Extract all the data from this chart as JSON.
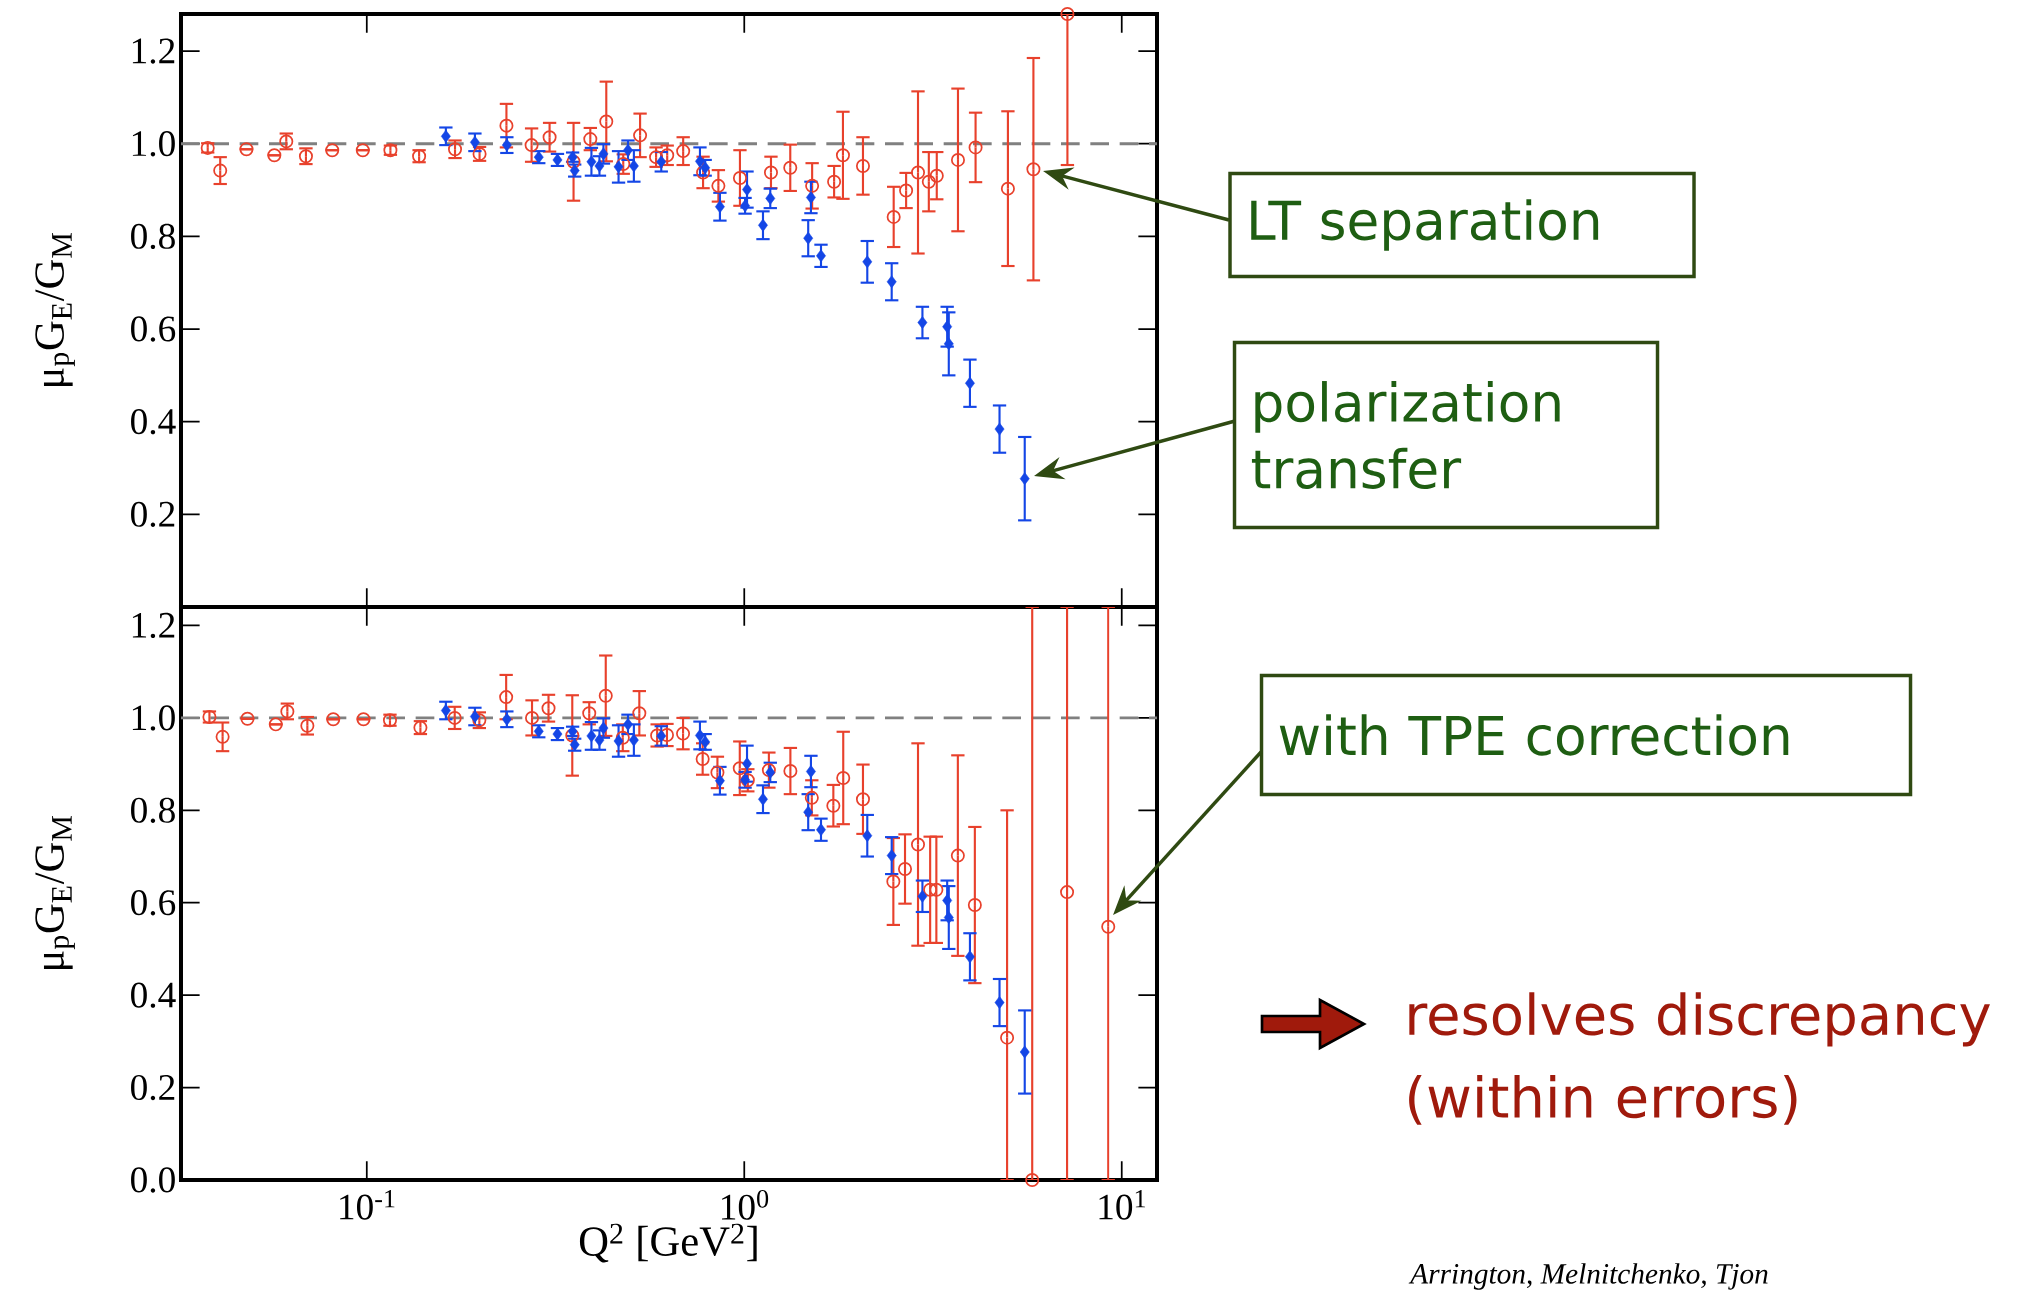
{
  "chart_data": [
    {
      "type": "scatter",
      "log": "x",
      "xlim": [
        0.0322,
        12.4
      ],
      "ylim": [
        0,
        1.28
      ],
      "xticks": [
        {
          "value": 0.1,
          "label": null
        },
        {
          "value": 1,
          "label": null
        },
        {
          "value": 10,
          "label": null
        }
      ],
      "yticks": [
        {
          "value": 0.2,
          "label": "0.2"
        },
        {
          "value": 0.4,
          "label": "0.4"
        },
        {
          "value": 0.6,
          "label": "0.6"
        },
        {
          "value": 0.8,
          "label": "0.8"
        },
        {
          "value": 1,
          "label": "1.0"
        },
        {
          "value": 1.2,
          "label": "1.2"
        }
      ],
      "tick_labels": "y",
      "ylabel": "μ$_{p}$G$_{E}$/G$_{M}$",
      "ref_lines": [
        {
          "axis": "y",
          "value": 1,
          "color": "#808080",
          "line_style": "dashed"
        }
      ],
      "annotations": [
        "LT separation",
        "polarization transfer"
      ],
      "series": [
        {
          "color": "#e8412c",
          "marker": "circle",
          "x": [
            0.0379,
            0.0409,
            0.048,
            0.0569,
            0.0612,
            0.069,
            0.081,
            0.0976,
            0.1155,
            0.1376,
            0.1713,
            0.199,
            0.2344,
            0.2733,
            0.305,
            0.353,
            0.391,
            0.431,
            0.478,
            0.5297,
            0.584,
            0.625,
            0.689,
            0.778,
            0.854,
            0.974,
            1.177,
            1.324,
            1.513,
            1.73,
            1.826,
            2.063,
            2.488,
            2.684,
            2.886,
            3.083,
            3.236,
            3.683,
            4.1,
            4.994,
            5.835,
            7.18
          ],
          "values": [
            0.991,
            0.942,
            0.988,
            0.975,
            1.005,
            0.973,
            0.986,
            0.986,
            0.986,
            0.973,
            0.988,
            0.978,
            1.039,
            0.997,
            1.014,
            0.961,
            1.01,
            1.048,
            0.956,
            1.018,
            0.971,
            0.975,
            0.984,
            0.938,
            0.909,
            0.926,
            0.938,
            0.948,
            0.909,
            0.918,
            0.975,
            0.952,
            0.842,
            0.899,
            0.938,
            0.918,
            0.931,
            0.965,
            0.992,
            0.903,
            0.945,
            1.28
          ],
          "errors": [
            0.01,
            0.029,
            null,
            null,
            0.017,
            0.017,
            null,
            null,
            0.01,
            0.013,
            0.019,
            0.015,
            0.047,
            0.036,
            0.031,
            0.084,
            0.024,
            0.086,
            0.021,
            0.047,
            0.021,
            0.021,
            0.03,
            0.034,
            0.034,
            0.06,
            0.034,
            0.05,
            0.049,
            0.034,
            0.094,
            0.062,
            0.065,
            0.038,
            0.175,
            0.064,
            0.051,
            0.154,
            0.075,
            0.167,
            0.24,
            [
              0.954,
              1.28
            ]
          ]
        },
        {
          "color": "#1446e6",
          "marker": "diamond",
          "x": [
            0.162,
            0.1934,
            0.235,
            0.2855,
            0.32,
            0.351,
            0.3555,
            0.3937,
            0.4134,
            0.4236,
            0.4645,
            0.492,
            0.51,
            0.6027,
            0.7633,
            0.788,
            0.862,
            1.005,
            1.017,
            1.121,
            1.172,
            1.502,
            1.477,
            1.597,
            2.118,
            2.458,
            2.965,
            3.448,
            3.482,
            3.962,
            4.745,
            5.534
          ],
          "values": [
            1.016,
            1.003,
            0.997,
            0.971,
            0.965,
            0.971,
            0.942,
            0.961,
            0.952,
            0.978,
            0.95,
            0.986,
            0.952,
            0.961,
            0.962,
            0.948,
            0.864,
            0.866,
            0.901,
            0.824,
            0.882,
            0.884,
            0.796,
            0.758,
            0.745,
            0.702,
            0.614,
            0.605,
            0.568,
            0.483,
            0.384,
            0.277
          ],
          "errors": [
            0.019,
            0.019,
            0.017,
            0.013,
            0.013,
            0.01,
            0.013,
            0.03,
            0.021,
            0.021,
            0.034,
            0.021,
            0.034,
            0.021,
            0.03,
            0.017,
            0.03,
            0.017,
            0.039,
            0.03,
            0.021,
            0.034,
            0.039,
            0.024,
            0.045,
            0.04,
            0.034,
            0.043,
            0.068,
            0.051,
            0.051,
            0.09
          ]
        }
      ]
    },
    {
      "type": "scatter",
      "log": "x",
      "xlim": [
        0.0322,
        12.4
      ],
      "ylim": [
        0,
        1.24
      ],
      "xticks": [
        {
          "value": 0.1,
          "label": "10$^{-1}$"
        },
        {
          "value": 1,
          "label": "10$^{0}$"
        },
        {
          "value": 10,
          "label": "10$^{1}$"
        }
      ],
      "yticks": [
        {
          "value": 0,
          "label": "0.0"
        },
        {
          "value": 0.2,
          "label": "0.2"
        },
        {
          "value": 0.4,
          "label": "0.4"
        },
        {
          "value": 0.6,
          "label": "0.6"
        },
        {
          "value": 0.8,
          "label": "0.8"
        },
        {
          "value": 1,
          "label": "1.0"
        },
        {
          "value": 1.2,
          "label": "1.2"
        }
      ],
      "xlabel": "Q$^{2}$ [GeV$^{2}$]",
      "ylabel": "μ$_{p}$G$_{E}$/G$_{M}$",
      "ref_lines": [
        {
          "axis": "y",
          "value": 1,
          "color": "#808080",
          "line_style": "dashed"
        }
      ],
      "annotations": [
        "with TPE correction",
        "resolves discrepancy (within errors)",
        "Arrington, Melnitchenko, Tjon"
      ],
      "series": [
        {
          "color": "#e8412c",
          "marker": "circle",
          "x": [
            0.0383,
            0.0415,
            0.0483,
            0.0574,
            0.0616,
            0.0696,
            0.0815,
            0.098,
            0.1152,
            0.1387,
            0.171,
            0.1987,
            0.234,
            0.274,
            0.303,
            0.3503,
            0.3885,
            0.4296,
            0.4766,
            0.5272,
            0.5878,
            0.6241,
            0.6884,
            0.776,
            0.849,
            0.973,
            1.022,
            1.162,
            1.325,
            1.51,
            1.722,
            1.829,
            2.063,
            2.483,
            2.666,
            2.886,
            3.108,
            3.228,
            3.68,
            4.082,
            4.969,
            5.792,
            7.165,
            9.21
          ],
          "values": [
            1.002,
            0.959,
            0.998,
            0.986,
            1.014,
            0.983,
            0.997,
            0.997,
            0.995,
            0.979,
            1.0,
            0.995,
            1.045,
            1.0,
            1.021,
            0.962,
            1.01,
            1.048,
            0.957,
            1.01,
            0.962,
            0.963,
            0.966,
            0.911,
            0.882,
            0.891,
            0.865,
            0.887,
            0.885,
            0.827,
            0.81,
            0.87,
            0.824,
            0.646,
            0.673,
            0.726,
            0.628,
            0.628,
            0.702,
            0.595,
            0.308,
            0.0,
            0.623,
            0.548
          ],
          "errors": [
            0.012,
            0.031,
            null,
            null,
            0.017,
            0.019,
            null,
            null,
            0.012,
            0.014,
            0.024,
            0.017,
            0.048,
            0.038,
            0.029,
            0.087,
            0.024,
            0.087,
            0.029,
            0.048,
            0.024,
            0.024,
            0.034,
            0.034,
            0.034,
            0.058,
            0.024,
            0.038,
            0.05,
            0.038,
            0.045,
            0.1,
            0.075,
            0.094,
            0.075,
            0.219,
            0.115,
            0.115,
            0.217,
            0.169,
            [
              0,
              0.8
            ],
            [
              0,
              1.24
            ],
            [
              0,
              1.24
            ],
            [
              0,
              1.24
            ]
          ]
        },
        {
          "color": "#1446e6",
          "marker": "diamond",
          "x": [
            0.162,
            0.1934,
            0.235,
            0.2855,
            0.32,
            0.351,
            0.3555,
            0.3937,
            0.4134,
            0.4236,
            0.4645,
            0.492,
            0.51,
            0.6027,
            0.7633,
            0.788,
            0.862,
            1.005,
            1.017,
            1.121,
            1.172,
            1.502,
            1.477,
            1.597,
            2.118,
            2.458,
            2.965,
            3.448,
            3.482,
            3.962,
            4.745,
            5.534
          ],
          "values": [
            1.016,
            1.003,
            0.997,
            0.971,
            0.965,
            0.971,
            0.942,
            0.961,
            0.952,
            0.978,
            0.95,
            0.986,
            0.952,
            0.961,
            0.962,
            0.948,
            0.864,
            0.866,
            0.901,
            0.824,
            0.882,
            0.884,
            0.796,
            0.758,
            0.745,
            0.702,
            0.614,
            0.605,
            0.568,
            0.483,
            0.384,
            0.277
          ],
          "errors": [
            0.019,
            0.019,
            0.017,
            0.013,
            0.013,
            0.01,
            0.013,
            0.03,
            0.021,
            0.021,
            0.034,
            0.021,
            0.034,
            0.021,
            0.03,
            0.017,
            0.03,
            0.017,
            0.039,
            0.03,
            0.021,
            0.034,
            0.039,
            0.024,
            0.045,
            0.04,
            0.034,
            0.043,
            0.068,
            0.051,
            0.051,
            0.09
          ]
        }
      ]
    }
  ]
}
